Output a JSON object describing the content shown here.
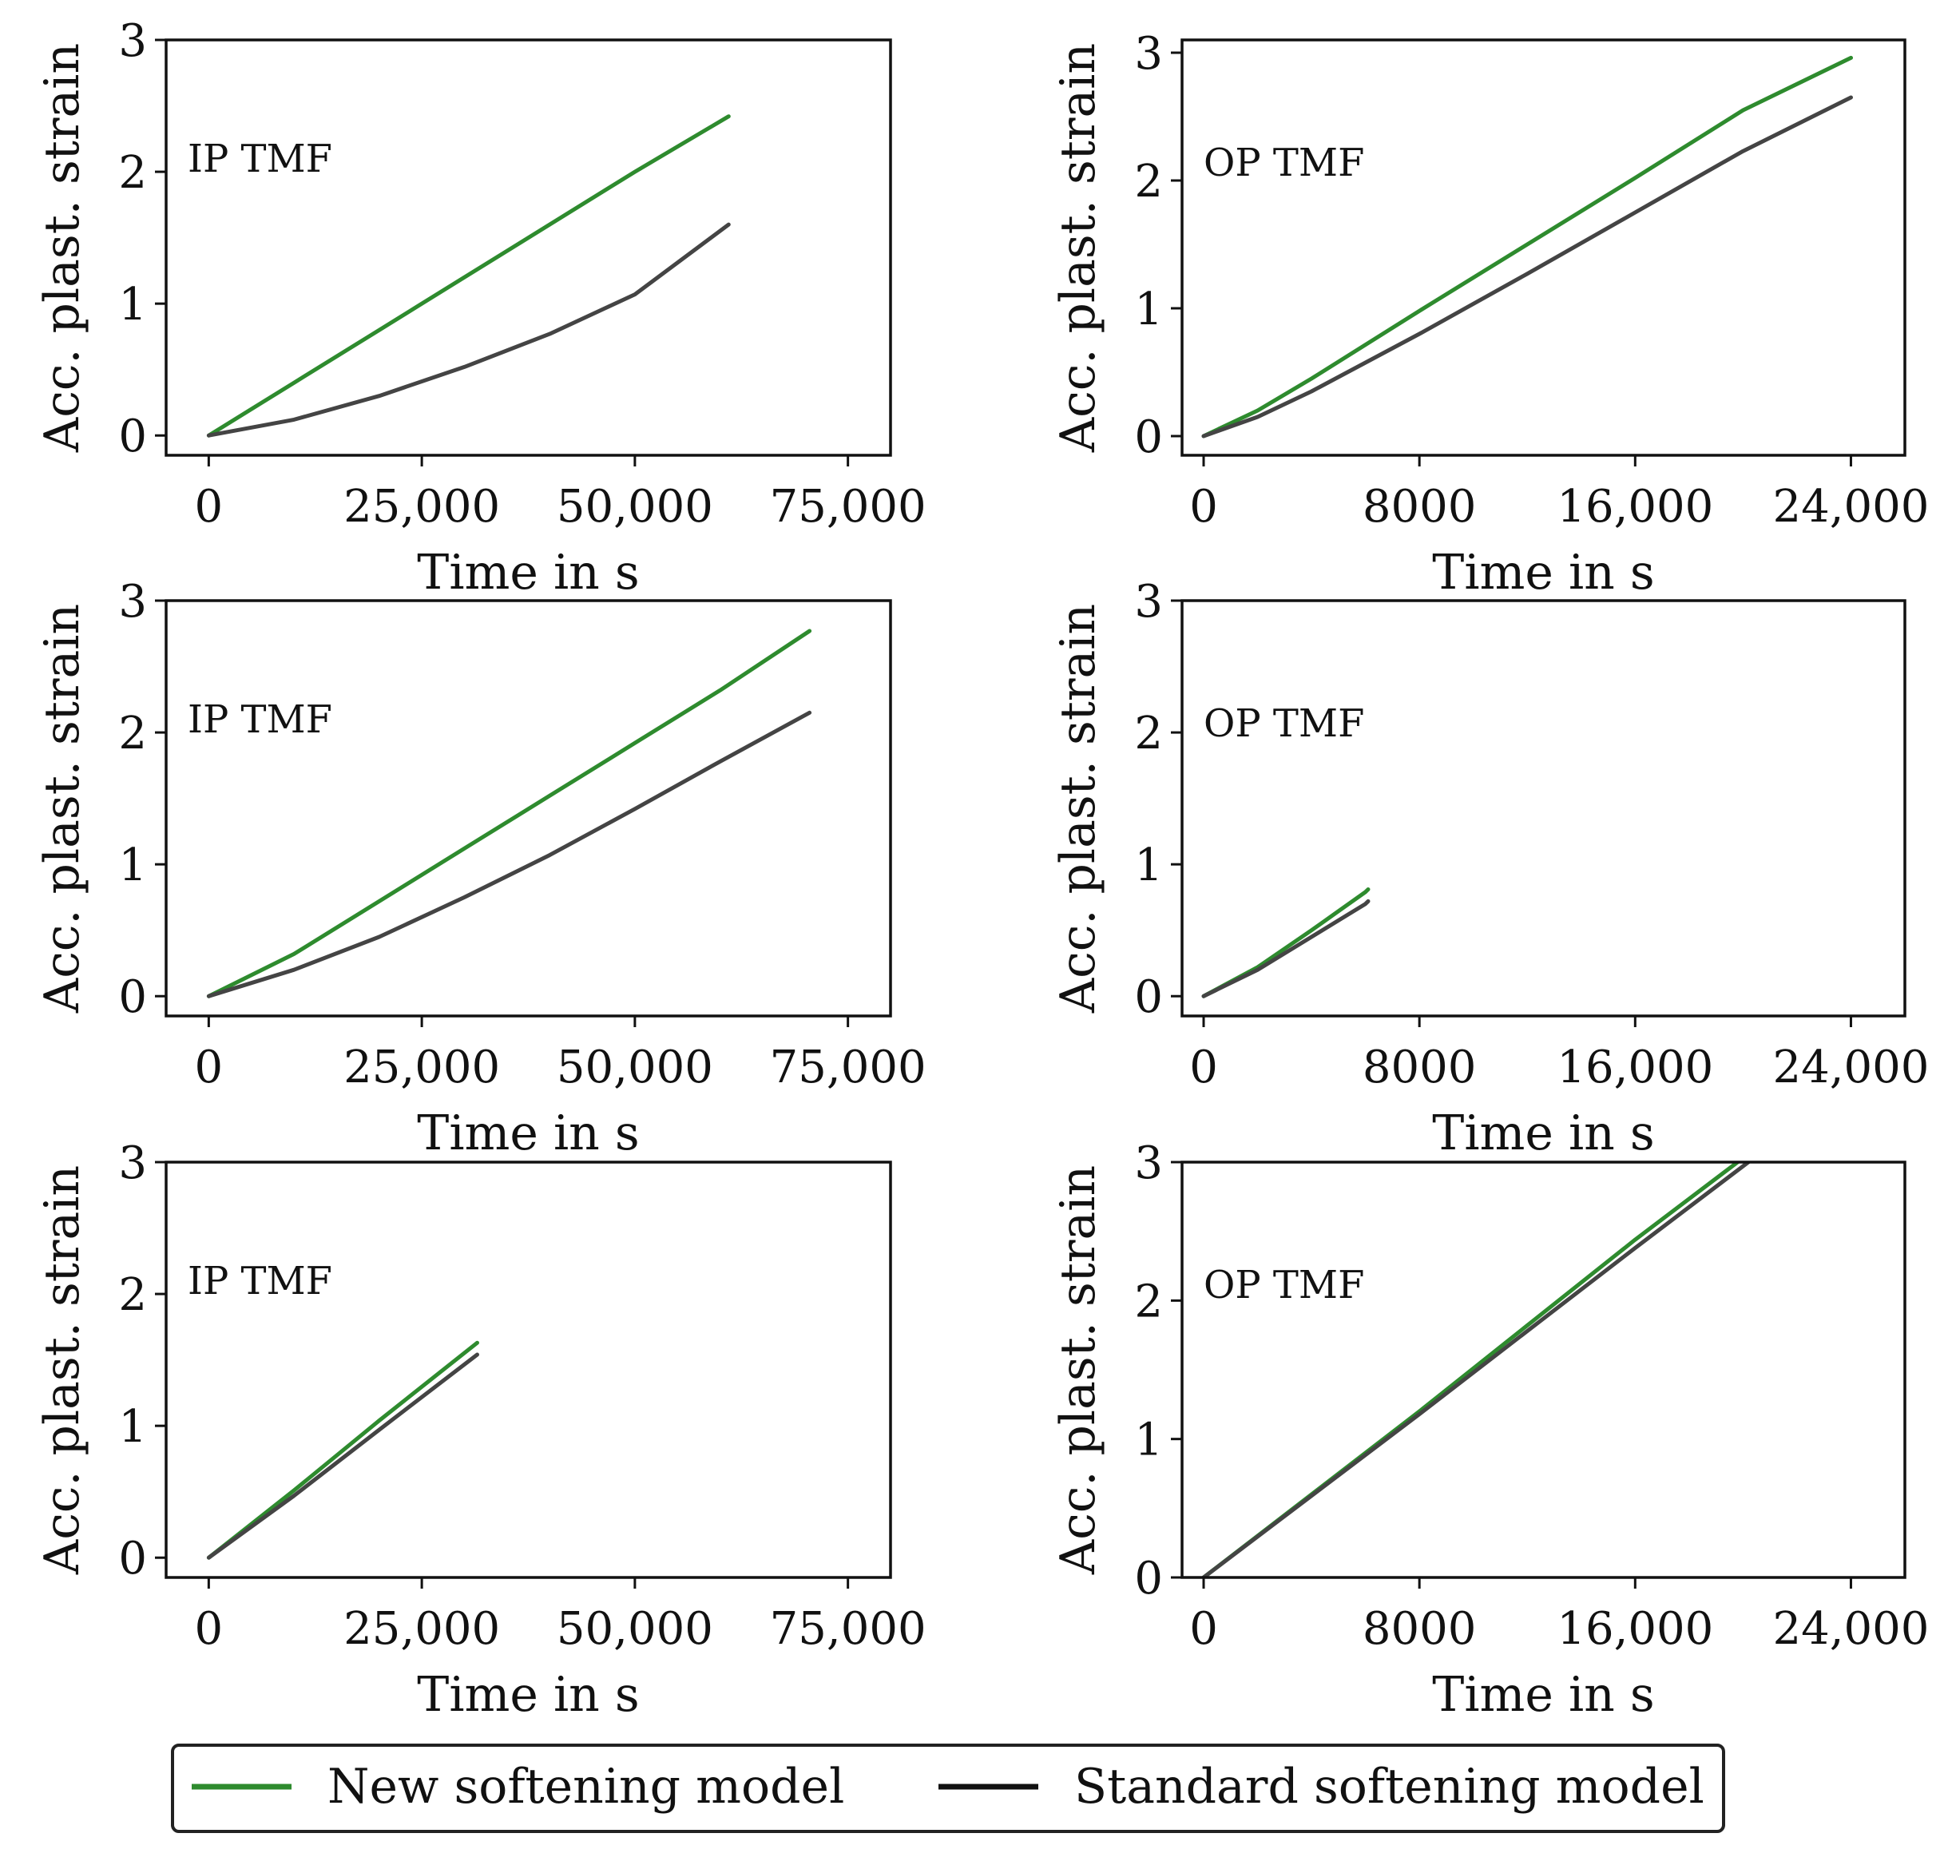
{
  "chart_data": [
    {
      "type": "line",
      "panel": "top-left",
      "annotation": "IP TMF",
      "xlabel": "Time in s",
      "ylabel": "Acc. plast. strain",
      "xlim": [
        -5000,
        80000
      ],
      "ylim": [
        -0.15,
        3
      ],
      "xticks": [
        0,
        25000,
        50000,
        75000
      ],
      "xtick_labels": [
        "0",
        "25,000",
        "50,000",
        "75,000"
      ],
      "yticks": [
        0,
        1,
        2,
        3
      ],
      "ytick_labels": [
        "0",
        "1",
        "2",
        "3"
      ],
      "series": [
        {
          "name": "New softening model",
          "color": "#2e8b2e",
          "x": [
            0,
            10000,
            20000,
            30000,
            40000,
            50000,
            61000
          ],
          "y": [
            0,
            0.4,
            0.8,
            1.2,
            1.6,
            2.0,
            2.42
          ]
        },
        {
          "name": "Standard softening model",
          "color": "#444444",
          "x": [
            0,
            10000,
            20000,
            30000,
            40000,
            50000,
            61000
          ],
          "y": [
            0,
            0.12,
            0.3,
            0.52,
            0.77,
            1.07,
            1.6
          ]
        }
      ]
    },
    {
      "type": "line",
      "panel": "top-right",
      "annotation": "OP TMF",
      "xlabel": "Time in s",
      "ylabel": "Acc. plast. strain",
      "xlim": [
        -800,
        26000
      ],
      "ylim": [
        -0.15,
        3.1
      ],
      "xticks": [
        0,
        8000,
        16000,
        24000
      ],
      "xtick_labels": [
        "0",
        "8000",
        "16,000",
        "24,000"
      ],
      "yticks": [
        0,
        1,
        2,
        3
      ],
      "ytick_labels": [
        "0",
        "1",
        "2",
        "3"
      ],
      "series": [
        {
          "name": "New softening model",
          "color": "#2e8b2e",
          "x": [
            0,
            2000,
            4000,
            8000,
            12000,
            16000,
            20000,
            24000
          ],
          "y": [
            0,
            0.2,
            0.45,
            0.98,
            1.5,
            2.02,
            2.55,
            2.96
          ]
        },
        {
          "name": "Standard softening model",
          "color": "#444444",
          "x": [
            0,
            2000,
            4000,
            8000,
            12000,
            16000,
            20000,
            24000
          ],
          "y": [
            0,
            0.15,
            0.35,
            0.8,
            1.27,
            1.75,
            2.23,
            2.65
          ]
        }
      ]
    },
    {
      "type": "line",
      "panel": "middle-left",
      "annotation": "IP TMF",
      "xlabel": "Time in s",
      "ylabel": "Acc. plast. strain",
      "xlim": [
        -5000,
        80000
      ],
      "ylim": [
        -0.15,
        3
      ],
      "xticks": [
        0,
        25000,
        50000,
        75000
      ],
      "xtick_labels": [
        "0",
        "25,000",
        "50,000",
        "75,000"
      ],
      "yticks": [
        0,
        1,
        2,
        3
      ],
      "ytick_labels": [
        "0",
        "1",
        "2",
        "3"
      ],
      "series": [
        {
          "name": "New softening model",
          "color": "#2e8b2e",
          "x": [
            0,
            10000,
            20000,
            30000,
            40000,
            50000,
            60000,
            70500
          ],
          "y": [
            0,
            0.32,
            0.72,
            1.12,
            1.52,
            1.92,
            2.32,
            2.77
          ]
        },
        {
          "name": "Standard softening model",
          "color": "#444444",
          "x": [
            0,
            10000,
            20000,
            30000,
            40000,
            50000,
            60000,
            70500
          ],
          "y": [
            0,
            0.2,
            0.45,
            0.75,
            1.07,
            1.42,
            1.78,
            2.15
          ]
        }
      ]
    },
    {
      "type": "line",
      "panel": "middle-right",
      "annotation": "OP TMF",
      "xlabel": "Time in s",
      "ylabel": "Acc. plast. strain",
      "xlim": [
        -800,
        26000
      ],
      "ylim": [
        -0.15,
        3
      ],
      "xticks": [
        0,
        8000,
        16000,
        24000
      ],
      "xtick_labels": [
        "0",
        "8000",
        "16,000",
        "24,000"
      ],
      "yticks": [
        0,
        1,
        2,
        3
      ],
      "ytick_labels": [
        "0",
        "1",
        "2",
        "3"
      ],
      "series": [
        {
          "name": "New softening model",
          "color": "#2e8b2e",
          "x": [
            0,
            2000,
            4000,
            6000,
            6100
          ],
          "y": [
            0,
            0.22,
            0.5,
            0.79,
            0.81
          ]
        },
        {
          "name": "Standard softening model",
          "color": "#444444",
          "x": [
            0,
            2000,
            4000,
            6000,
            6100
          ],
          "y": [
            0,
            0.2,
            0.45,
            0.7,
            0.72
          ]
        }
      ]
    },
    {
      "type": "line",
      "panel": "bottom-left",
      "annotation": "IP TMF",
      "xlabel": "Time in s",
      "ylabel": "Acc. plast. strain",
      "xlim": [
        -5000,
        80000
      ],
      "ylim": [
        -0.15,
        3
      ],
      "xticks": [
        0,
        25000,
        50000,
        75000
      ],
      "xtick_labels": [
        "0",
        "25,000",
        "50,000",
        "75,000"
      ],
      "yticks": [
        0,
        1,
        2,
        3
      ],
      "ytick_labels": [
        "0",
        "1",
        "2",
        "3"
      ],
      "series": [
        {
          "name": "New softening model",
          "color": "#2e8b2e",
          "x": [
            0,
            10000,
            20000,
            31500
          ],
          "y": [
            0,
            0.51,
            1.04,
            1.63
          ]
        },
        {
          "name": "Standard softening model",
          "color": "#444444",
          "x": [
            0,
            10000,
            20000,
            31500
          ],
          "y": [
            0,
            0.47,
            0.97,
            1.54
          ]
        }
      ]
    },
    {
      "type": "line",
      "panel": "bottom-right",
      "annotation": "OP TMF",
      "xlabel": "Time in s",
      "ylabel": "Acc. plast. strain",
      "xlim": [
        -800,
        26000
      ],
      "ylim": [
        0,
        3
      ],
      "xticks": [
        0,
        8000,
        16000,
        24000
      ],
      "xtick_labels": [
        "0",
        "8000",
        "16,000",
        "24,000"
      ],
      "yticks": [
        0,
        1,
        2,
        3
      ],
      "ytick_labels": [
        "0",
        "1",
        "2",
        "3"
      ],
      "series": [
        {
          "name": "New softening model",
          "color": "#2e8b2e",
          "x": [
            0,
            4000,
            8000,
            12000,
            16000,
            19800
          ],
          "y": [
            0,
            0.6,
            1.2,
            1.82,
            2.44,
            3.0
          ]
        },
        {
          "name": "Standard softening model",
          "color": "#444444",
          "x": [
            0,
            4000,
            8000,
            12000,
            16000,
            20200
          ],
          "y": [
            0,
            0.59,
            1.18,
            1.78,
            2.38,
            3.0
          ]
        }
      ]
    }
  ],
  "legend": {
    "items": [
      {
        "label": "New softening model",
        "color": "#2e8b2e"
      },
      {
        "label": "Standard softening model",
        "color": "#111111"
      }
    ]
  }
}
